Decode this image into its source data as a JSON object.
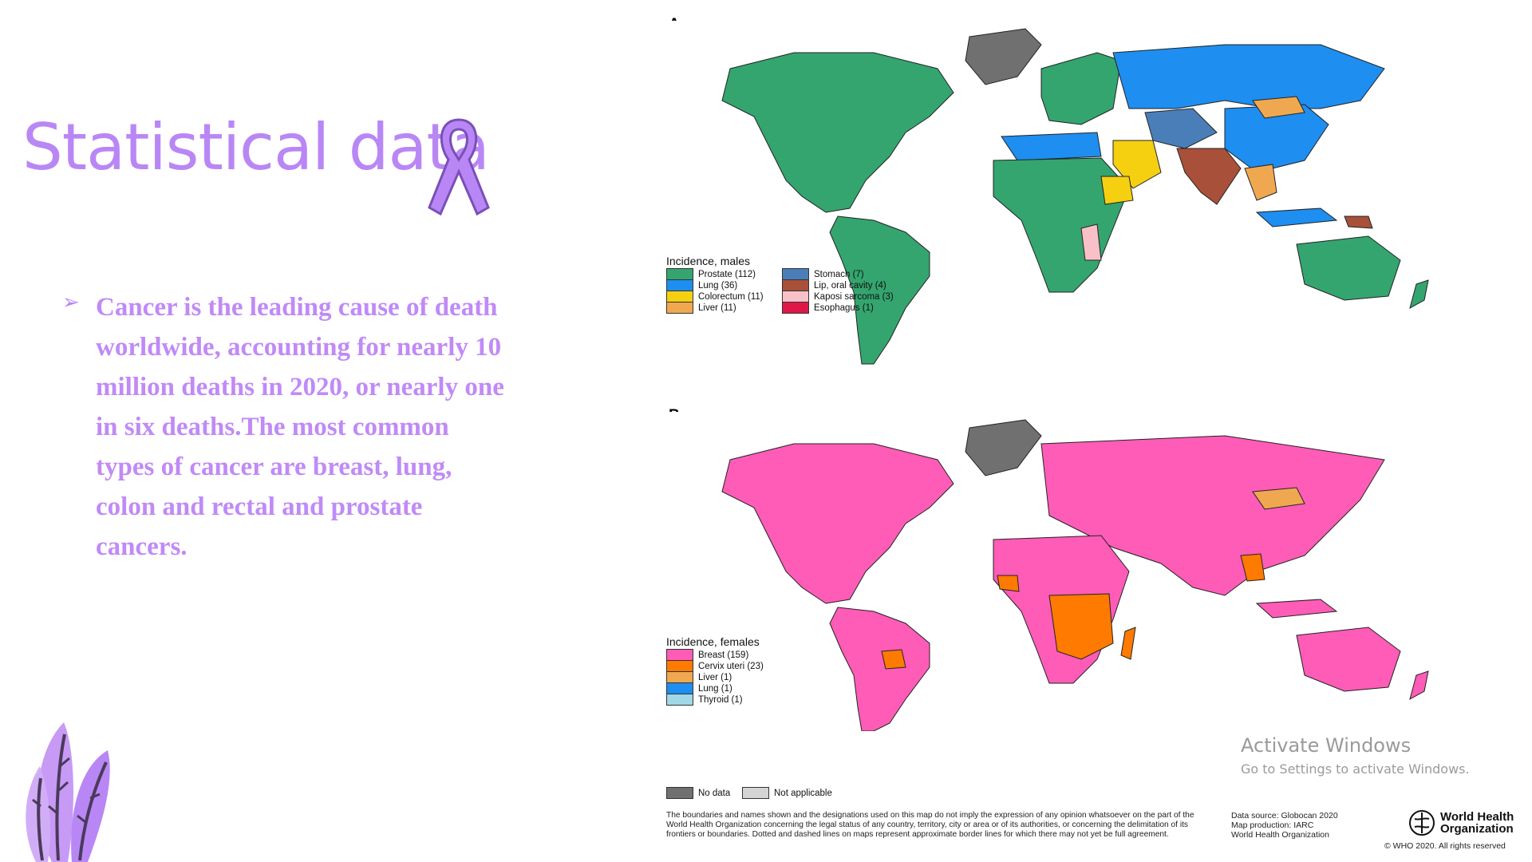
{
  "slide": {
    "title": "Statistical data",
    "bullet": "Cancer is the leading cause of death\nworldwide, accounting for nearly 10\nmillion deaths in 2020, or nearly one\nin six deaths.The most common\ntypes of cancer are breast, lung,\ncolon and rectal and prostate\ncancers.",
    "accent_color": "#b987f5"
  },
  "map_a": {
    "label": "A",
    "legend_title": "Incidence, males",
    "legend": [
      {
        "label": "Prostate (112)",
        "color": "#34a56f"
      },
      {
        "label": "Lung (36)",
        "color": "#1e8ef0"
      },
      {
        "label": "Colorectum (11)",
        "color": "#f5d010"
      },
      {
        "label": "Liver (11)",
        "color": "#f0a850"
      },
      {
        "label": "Stomach (7)",
        "color": "#4a7eb8"
      },
      {
        "label": "Lip, oral cavity (4)",
        "color": "#a8503a"
      },
      {
        "label": "Kaposi sarcoma (3)",
        "color": "#f8c0c8"
      },
      {
        "label": "Esophagus (1)",
        "color": "#e01848"
      }
    ]
  },
  "map_b": {
    "label": "B",
    "legend_title": "Incidence, females",
    "legend": [
      {
        "label": "Breast (159)",
        "color": "#ff5cb8"
      },
      {
        "label": "Cervix uteri (23)",
        "color": "#ff7a00"
      },
      {
        "label": "Liver (1)",
        "color": "#f0a850"
      },
      {
        "label": "Lung (1)",
        "color": "#1e8ef0"
      },
      {
        "label": "Thyroid (1)",
        "color": "#a0d8e8"
      }
    ]
  },
  "common_legend": [
    {
      "label": "No data",
      "color": "#707070"
    },
    {
      "label": "Not applicable",
      "color": "#d4d4d4"
    }
  ],
  "footer": {
    "disclaimer": "The boundaries and names shown and the designations used on this map do not imply the expression of any opinion whatsoever on the part of the World Health Organization concerning the legal status of any country, territory, city or area or of its authorities, or concerning the delimitation of its frontiers or boundaries. Dotted and dashed lines on maps represent approximate border lines for which there may not yet be full agreement.",
    "source_lines": [
      "Data source: Globocan 2020",
      "Map production: IARC",
      "World Health Organization"
    ],
    "who_name_1": "World Health",
    "who_name_2": "Organization",
    "copyright": "© WHO 2020. All rights reserved"
  },
  "watermark": {
    "line1": "Activate Windows",
    "line2": "Go to Settings to activate Windows."
  }
}
